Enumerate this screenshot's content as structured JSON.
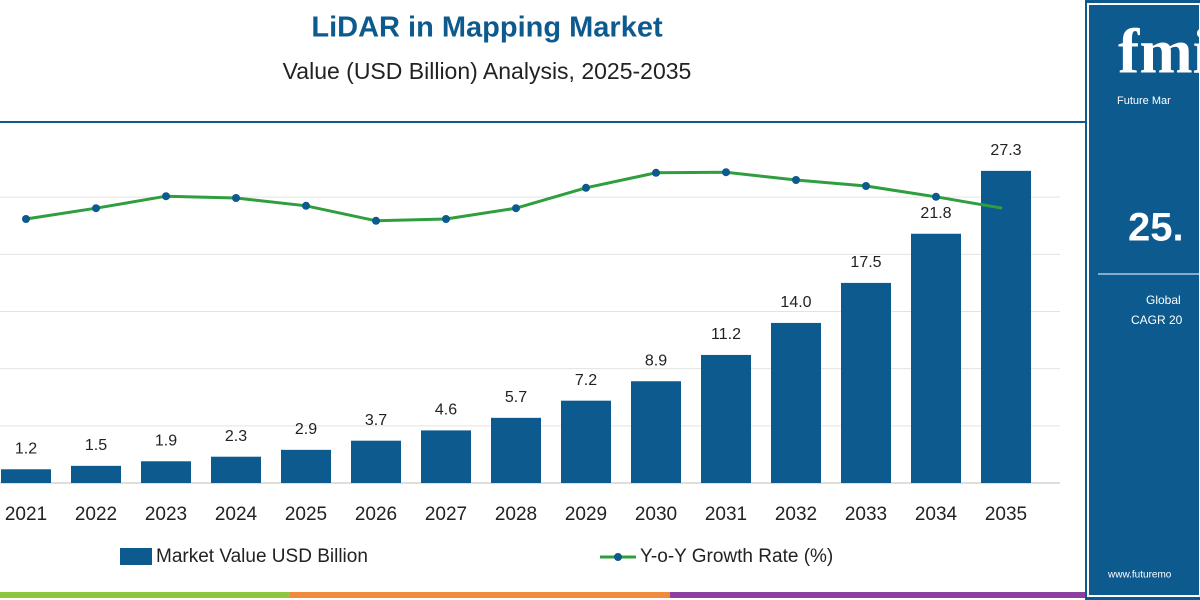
{
  "chart_data": {
    "type": "bar",
    "title": "LiDAR in Mapping Market",
    "subtitle": "Value (USD Billion) Analysis, 2025-2035",
    "categories": [
      "2021",
      "2022",
      "2023",
      "2024",
      "2025",
      "2026",
      "2027",
      "2028",
      "2029",
      "2030",
      "2031",
      "2032",
      "2033",
      "2034",
      "2035"
    ],
    "series": [
      {
        "name": "Market Value USD Billion",
        "type": "bar",
        "color": "#0d5a8f",
        "values": [
          1.2,
          1.5,
          1.9,
          2.3,
          2.9,
          3.7,
          4.6,
          5.7,
          7.2,
          8.9,
          11.2,
          14.0,
          17.5,
          21.8,
          27.3
        ],
        "value_labels": [
          "1.2",
          "1.5",
          "1.9",
          "2.3",
          "2.9",
          "3.7",
          "4.6",
          "5.7",
          "7.2",
          "8.9",
          "11.2",
          "14.0",
          "17.5",
          "21.8",
          "27.3"
        ]
      },
      {
        "name": "Y-o-Y Growth Rate (%)",
        "type": "line",
        "axis": "y2",
        "color": "#2e9e3e",
        "values": [
          18.5,
          20.3,
          22.3,
          22.0,
          20.7,
          18.2,
          18.5,
          20.3,
          23.7,
          26.2,
          26.3,
          25.0,
          24.0,
          22.2,
          20.2
        ]
      }
    ],
    "ylim": [
      0,
      30
    ],
    "yticks": [
      0,
      5,
      10,
      15,
      20,
      25
    ],
    "grid": true
  },
  "sidebar": {
    "logo": "fmi",
    "brand": "Future Mar",
    "figure": "25.",
    "caption_1": "Global",
    "caption_2": "CAGR 20",
    "url": "www.futuremo"
  }
}
